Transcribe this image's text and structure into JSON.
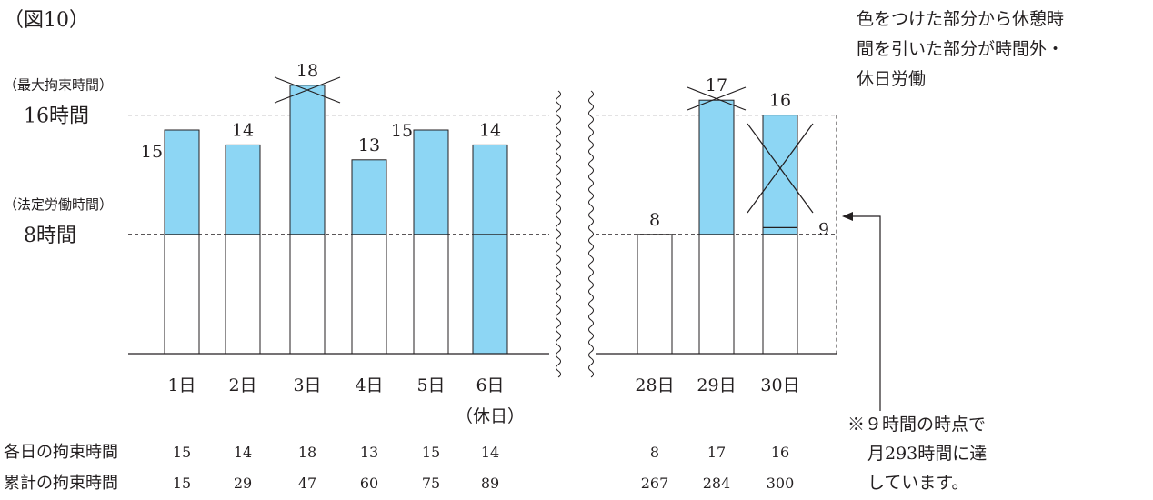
{
  "figure_label": "（図10）",
  "legend_note": [
    "色をつけた部分から休憩時",
    "間を引いた部分が時間外・",
    "休日労働"
  ],
  "footnote": [
    "※９時間の時点で",
    "月293時間に達",
    "しています。"
  ],
  "colors": {
    "fill_overtime": "#8dd6f4",
    "stroke": "#231f20",
    "background": "#ffffff"
  },
  "chart_data": {
    "type": "bar",
    "title": "（図10）",
    "categories": [
      "1日",
      "2日",
      "3日",
      "4日",
      "5日",
      "6日",
      "28日",
      "29日",
      "30日"
    ],
    "values": [
      15,
      14,
      18,
      13,
      15,
      14,
      8,
      17,
      16
    ],
    "reference_lines": [
      {
        "value": 16,
        "tag": "（最大拘束時間）",
        "label": "16時間"
      },
      {
        "value": 8,
        "tag": "（法定労働時間）",
        "label": "8時間"
      }
    ],
    "holiday_label": "（休日）",
    "bar_labels": [
      "15",
      "14",
      "18",
      "13",
      "15",
      "14",
      "8",
      "17",
      "16"
    ],
    "crossed_out": [
      "3日",
      "29日",
      "30日"
    ],
    "marker": {
      "day": "30日",
      "value": 9,
      "label": "9"
    },
    "table": {
      "rows": [
        {
          "label": "各日の拘束時間",
          "values": [
            "15",
            "14",
            "18",
            "13",
            "15",
            "14",
            "8",
            "17",
            "16"
          ]
        },
        {
          "label": "累計の拘束時間",
          "values": [
            "15",
            "29",
            "47",
            "60",
            "75",
            "89",
            "267",
            "284",
            "300"
          ]
        }
      ]
    },
    "ylim": [
      0,
      18
    ]
  }
}
